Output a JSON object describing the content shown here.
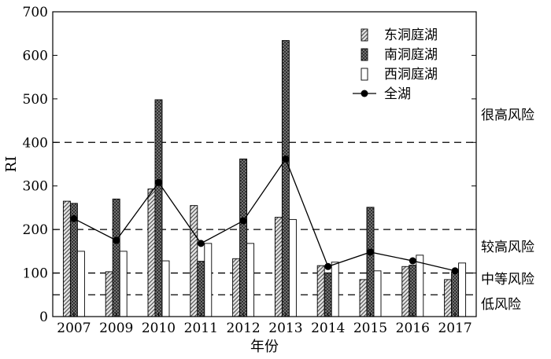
{
  "chart_data": {
    "type": "bar",
    "title": "",
    "xlabel": "年份",
    "ylabel": "RI",
    "ylim": [
      0,
      700
    ],
    "yticks": [
      0,
      100,
      200,
      300,
      400,
      500,
      600,
      700
    ],
    "categories": [
      "2007",
      "2009",
      "2010",
      "2011",
      "2012",
      "2013",
      "2014",
      "2015",
      "2016",
      "2017"
    ],
    "series": [
      {
        "name": "东洞庭湖",
        "kind": "bar",
        "pattern": "hatch",
        "color": "#bbbbbb",
        "values": [
          265,
          103,
          293,
          255,
          133,
          228,
          117,
          85,
          115,
          85
        ]
      },
      {
        "name": "南洞庭湖",
        "kind": "bar",
        "pattern": "crosshatch",
        "color": "#777777",
        "values": [
          260,
          270,
          498,
          127,
          362,
          634,
          100,
          251,
          118,
          103
        ]
      },
      {
        "name": "西洞庭湖",
        "kind": "bar",
        "pattern": "none",
        "color": "#ffffff",
        "values": [
          150,
          150,
          128,
          168,
          168,
          223,
          125,
          105,
          141,
          123
        ]
      },
      {
        "name": "全湖",
        "kind": "line",
        "marker": "circle",
        "color": "#000000",
        "values": [
          225,
          175,
          308,
          168,
          220,
          362,
          115,
          148,
          128,
          105
        ]
      }
    ],
    "thresholds": [
      {
        "value": 50,
        "label": "低风险"
      },
      {
        "value": 100,
        "label": "中等风险"
      },
      {
        "value": 200,
        "label": "较高风险"
      },
      {
        "value": 400,
        "label": "很高风险"
      }
    ],
    "legend": "top-right",
    "grid": false
  }
}
